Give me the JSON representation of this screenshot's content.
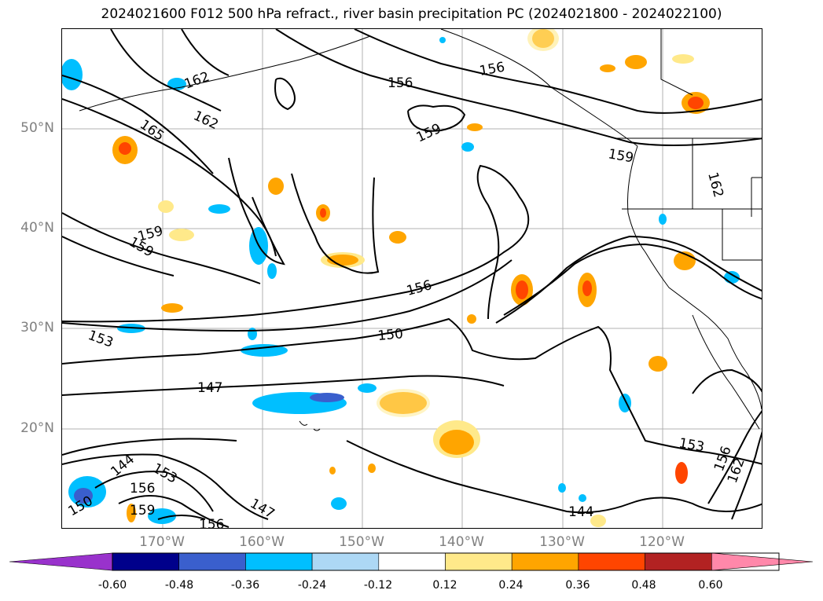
{
  "title": "2024021600 F012 500 hPa refract., river basin precipitation PC (2024021800 - 2024022100)",
  "map": {
    "projection": "plate carree",
    "lon_range": [
      "180°W",
      "110°W (approx.)"
    ],
    "lat_range": [
      "10°N",
      "60°N (approx.)"
    ],
    "lat_labels": [
      "50°N",
      "40°N",
      "30°N",
      "20°N"
    ],
    "lon_labels": [
      "170°W",
      "160°W",
      "150°W",
      "140°W",
      "130°W",
      "120°W"
    ],
    "contour_labels": [
      "162",
      "165",
      "162",
      "156",
      "156",
      "159",
      "159",
      "159",
      "159",
      "156",
      "150",
      "153",
      "147",
      "144",
      "153",
      "156",
      "159",
      "156",
      "150",
      "147",
      "144",
      "153",
      "156",
      "162",
      "162"
    ],
    "colors": {
      "contour": "#000000",
      "coast": "#000000",
      "grid": "#b0b0b0",
      "label": "#808080"
    }
  },
  "colorbar": {
    "ticks": [
      "-0.60",
      "-0.48",
      "-0.36",
      "-0.24",
      "-0.12",
      "0.12",
      "0.24",
      "0.36",
      "0.48",
      "0.60"
    ],
    "colors": [
      "#9932cc",
      "#00008b",
      "#3a5fcd",
      "#00bfff",
      "#add8f5",
      "#ffffff",
      "#ffe98a",
      "#ffa500",
      "#ff4500",
      "#b22222",
      "#ff88aa"
    ]
  }
}
